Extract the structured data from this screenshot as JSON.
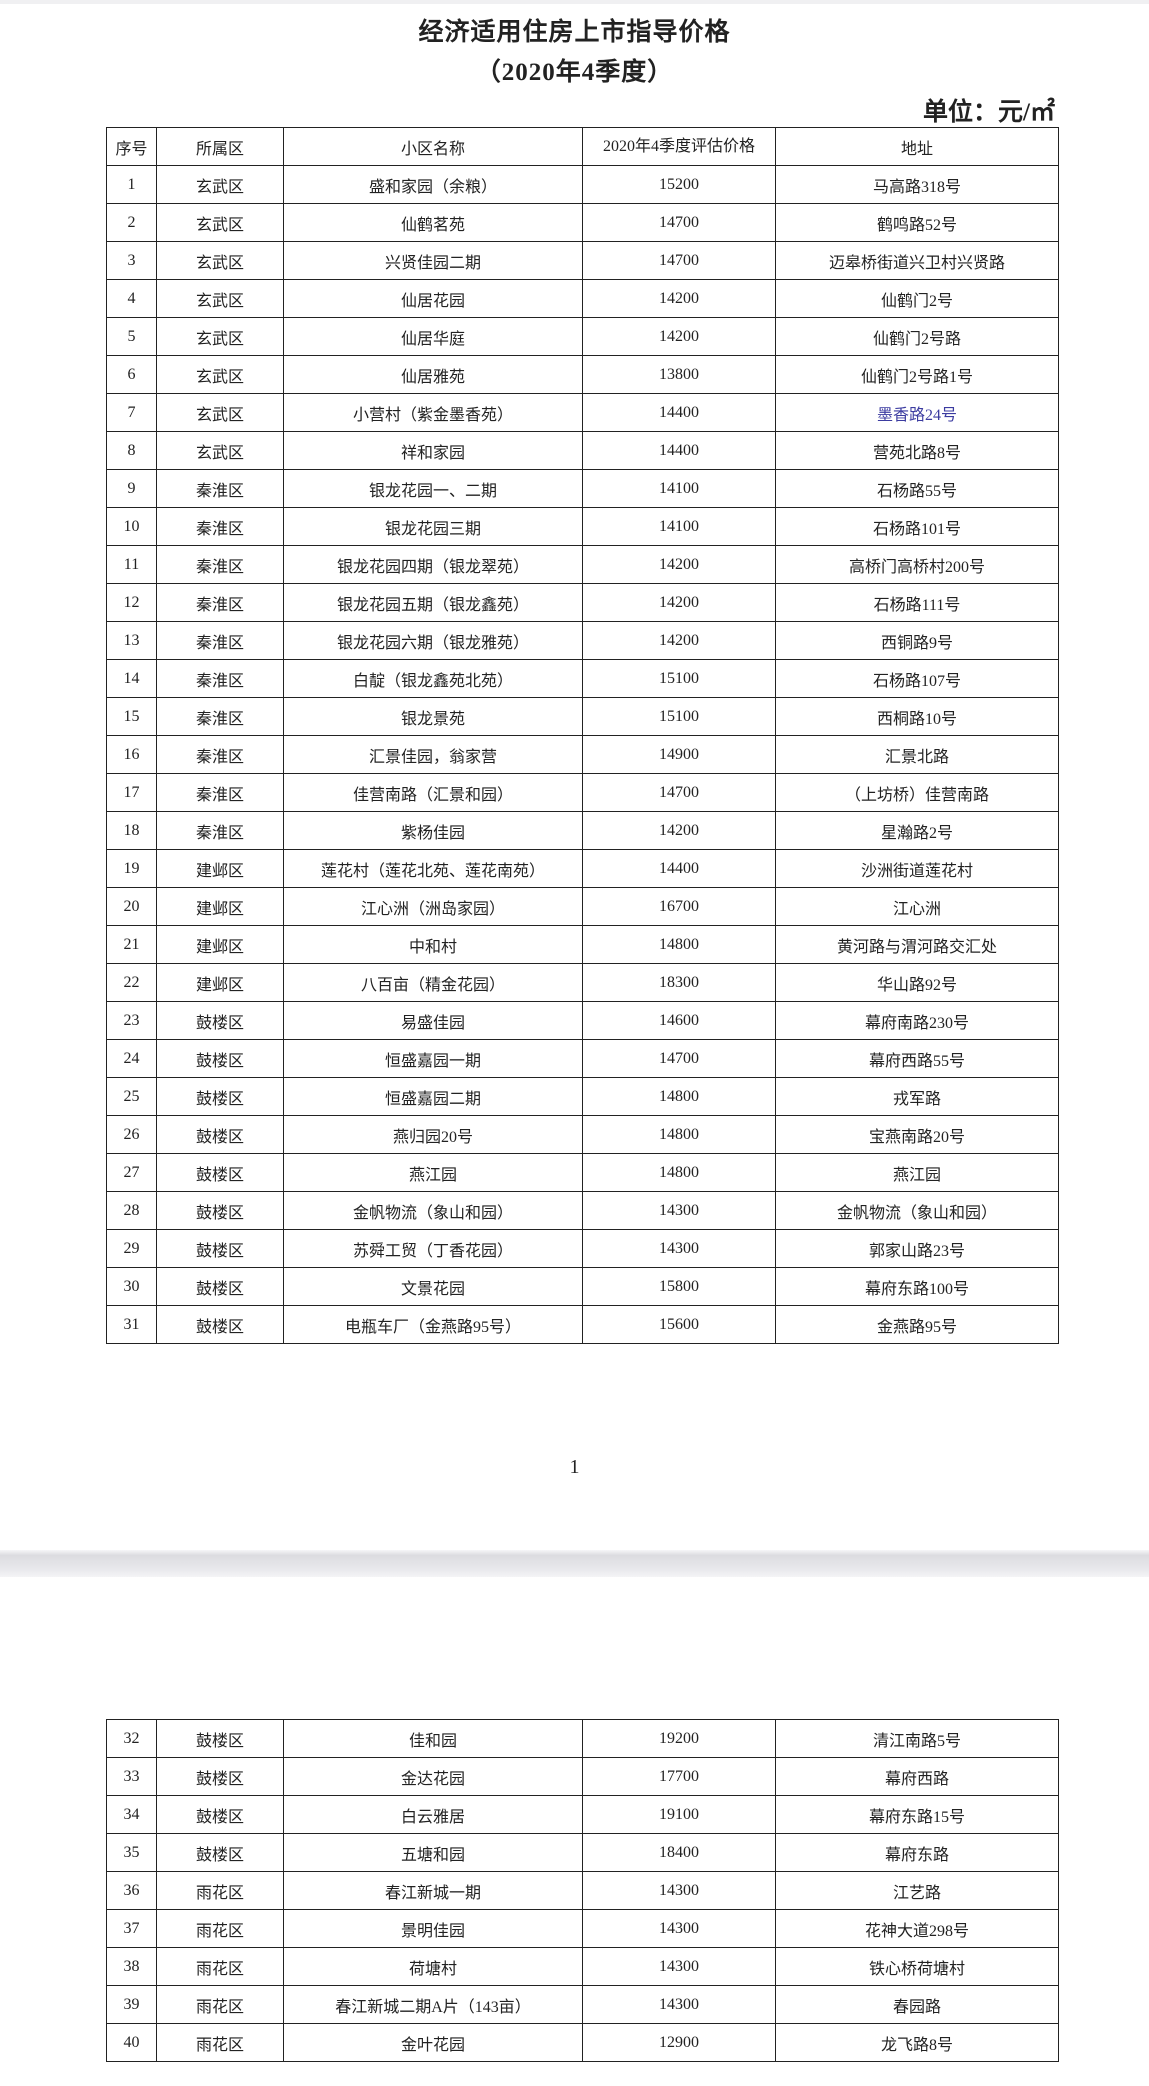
{
  "title": "经济适用住房上市指导价格",
  "subtitle": "（2020年4季度）",
  "unit": "单位：元/㎡",
  "page_number": "1",
  "highlight_color": "#3b3ba0",
  "columns": [
    "序号",
    "所属区",
    "小区名称",
    "2020年4季度评估价格",
    "地址"
  ],
  "rows": [
    [
      "1",
      "玄武区",
      "盛和家园（余粮）",
      "15200",
      "马高路318号"
    ],
    [
      "2",
      "玄武区",
      "仙鹤茗苑",
      "14700",
      "鹤鸣路52号"
    ],
    [
      "3",
      "玄武区",
      "兴贤佳园二期",
      "14700",
      "迈皋桥街道兴卫村兴贤路"
    ],
    [
      "4",
      "玄武区",
      "仙居花园",
      "14200",
      "仙鹤门2号"
    ],
    [
      "5",
      "玄武区",
      "仙居华庭",
      "14200",
      "仙鹤门2号路"
    ],
    [
      "6",
      "玄武区",
      "仙居雅苑",
      "13800",
      "仙鹤门2号路1号"
    ],
    [
      "7",
      "玄武区",
      "小营村（紫金墨香苑）",
      "14400",
      "墨香路24号"
    ],
    [
      "8",
      "玄武区",
      "祥和家园",
      "14400",
      "营苑北路8号"
    ],
    [
      "9",
      "秦淮区",
      "银龙花园一、二期",
      "14100",
      "石杨路55号"
    ],
    [
      "10",
      "秦淮区",
      "银龙花园三期",
      "14100",
      "石杨路101号"
    ],
    [
      "11",
      "秦淮区",
      "银龙花园四期（银龙翠苑）",
      "14200",
      "高桥门高桥村200号"
    ],
    [
      "12",
      "秦淮区",
      "银龙花园五期（银龙鑫苑）",
      "14200",
      "石杨路111号"
    ],
    [
      "13",
      "秦淮区",
      "银龙花园六期（银龙雅苑）",
      "14200",
      "西铜路9号"
    ],
    [
      "14",
      "秦淮区",
      "白靛（银龙鑫苑北苑）",
      "15100",
      "石杨路107号"
    ],
    [
      "15",
      "秦淮区",
      "银龙景苑",
      "15100",
      "西桐路10号"
    ],
    [
      "16",
      "秦淮区",
      "汇景佳园，翁家营",
      "14900",
      "汇景北路"
    ],
    [
      "17",
      "秦淮区",
      "佳营南路（汇景和园）",
      "14700",
      "（上坊桥）佳营南路"
    ],
    [
      "18",
      "秦淮区",
      "紫杨佳园",
      "14200",
      "星瀚路2号"
    ],
    [
      "19",
      "建邺区",
      "莲花村（莲花北苑、莲花南苑）",
      "14400",
      "沙洲街道莲花村"
    ],
    [
      "20",
      "建邺区",
      "江心洲（洲岛家园）",
      "16700",
      "江心洲"
    ],
    [
      "21",
      "建邺区",
      "中和村",
      "14800",
      "黄河路与渭河路交汇处"
    ],
    [
      "22",
      "建邺区",
      "八百亩（精金花园）",
      "18300",
      "华山路92号"
    ],
    [
      "23",
      "鼓楼区",
      "易盛佳园",
      "14600",
      "幕府南路230号"
    ],
    [
      "24",
      "鼓楼区",
      "恒盛嘉园一期",
      "14700",
      "幕府西路55号"
    ],
    [
      "25",
      "鼓楼区",
      "恒盛嘉园二期",
      "14800",
      "戎军路"
    ],
    [
      "26",
      "鼓楼区",
      "燕归园20号",
      "14800",
      "宝燕南路20号"
    ],
    [
      "27",
      "鼓楼区",
      "燕江园",
      "14800",
      "燕江园"
    ],
    [
      "28",
      "鼓楼区",
      "金帆物流（象山和园）",
      "14300",
      "金帆物流（象山和园）"
    ],
    [
      "29",
      "鼓楼区",
      "苏舜工贸（丁香花园）",
      "14300",
      "郭家山路23号"
    ],
    [
      "30",
      "鼓楼区",
      "文景花园",
      "15800",
      "幕府东路100号"
    ],
    [
      "31",
      "鼓楼区",
      "电瓶车厂（金燕路95号）",
      "15600",
      "金燕路95号"
    ]
  ],
  "rows_page2": [
    [
      "32",
      "鼓楼区",
      "佳和园",
      "19200",
      "清江南路5号"
    ],
    [
      "33",
      "鼓楼区",
      "金达花园",
      "17700",
      "幕府西路"
    ],
    [
      "34",
      "鼓楼区",
      "白云雅居",
      "19100",
      "幕府东路15号"
    ],
    [
      "35",
      "鼓楼区",
      "五塘和园",
      "18400",
      "幕府东路"
    ],
    [
      "36",
      "雨花区",
      "春江新城一期",
      "14300",
      "江艺路"
    ],
    [
      "37",
      "雨花区",
      "景明佳园",
      "14300",
      "花神大道298号"
    ],
    [
      "38",
      "雨花区",
      "荷塘村",
      "14300",
      "铁心桥荷塘村"
    ],
    [
      "39",
      "雨花区",
      "春江新城二期A片（143亩）",
      "14300",
      "春园路"
    ],
    [
      "40",
      "雨花区",
      "金叶花园",
      "12900",
      "龙飞路8号"
    ]
  ]
}
